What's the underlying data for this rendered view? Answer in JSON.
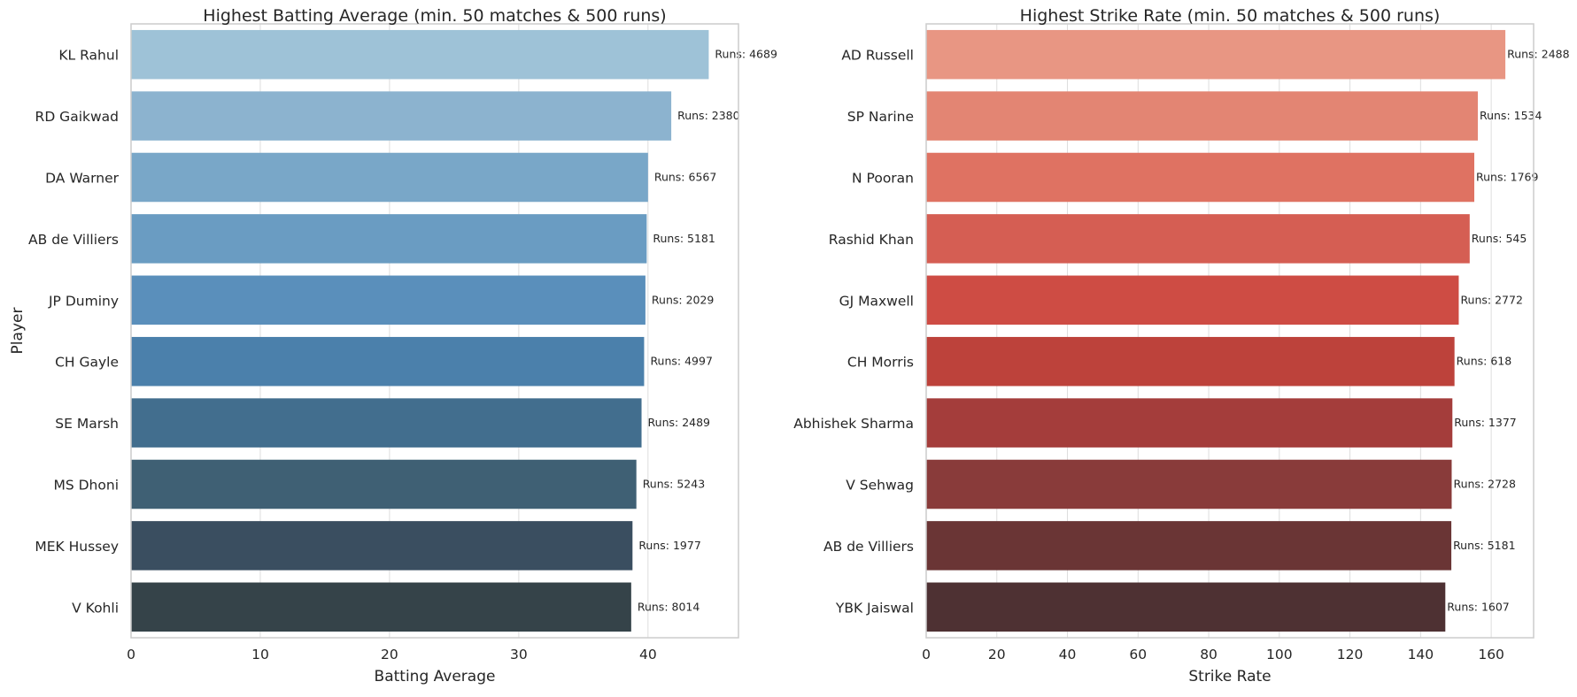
{
  "chart_data": [
    {
      "type": "bar",
      "orientation": "horizontal",
      "title": "Highest Batting Average (min. 50 matches & 500 runs)",
      "xlabel": "Batting Average",
      "ylabel": "Player",
      "xlim": [
        0,
        47
      ],
      "xticks": [
        0,
        10,
        20,
        30,
        40
      ],
      "grid": "vertical",
      "categories": [
        "KL Rahul",
        "RD Gaikwad",
        "DA Warner",
        "AB de Villiers",
        "JP Duminy",
        "CH Gayle",
        "SE Marsh",
        "MS Dhoni",
        "MEK Hussey",
        "V Kohli"
      ],
      "values": [
        44.7,
        41.8,
        40.0,
        39.9,
        39.8,
        39.7,
        39.5,
        39.1,
        38.8,
        38.7
      ],
      "annotations": [
        "Runs: 4689",
        "Runs: 2380",
        "Runs: 6567",
        "Runs: 5181",
        "Runs: 2029",
        "Runs: 4997",
        "Runs: 2489",
        "Runs: 5243",
        "Runs: 1977",
        "Runs: 8014"
      ],
      "colors": [
        "#9ec2d7",
        "#8cb3cf",
        "#79a7c8",
        "#6a9cc2",
        "#5a8fbb",
        "#4b80ab",
        "#426e8e",
        "#3f6074",
        "#3a4e60",
        "#354349"
      ]
    },
    {
      "type": "bar",
      "orientation": "horizontal",
      "title": "Highest Strike Rate (min. 50 matches & 500 runs)",
      "xlabel": "Strike Rate",
      "ylabel": "",
      "xlim": [
        0,
        172
      ],
      "xticks": [
        0,
        20,
        40,
        60,
        80,
        100,
        120,
        140,
        160
      ],
      "grid": "vertical",
      "categories": [
        "AD Russell",
        "SP Narine",
        "N Pooran",
        "Rashid Khan",
        "GJ Maxwell",
        "CH Morris",
        "Abhishek Sharma",
        "V Sehwag",
        "AB de Villiers",
        "YBK Jaiswal"
      ],
      "values": [
        164.0,
        156.2,
        155.2,
        153.9,
        150.8,
        149.6,
        149.0,
        148.8,
        148.7,
        147.0
      ],
      "annotations": [
        "Runs: 2488",
        "Runs: 1534",
        "Runs: 1769",
        "Runs: 545",
        "Runs: 2772",
        "Runs: 618",
        "Runs: 1377",
        "Runs: 2728",
        "Runs: 5181",
        "Runs: 1607"
      ],
      "colors": [
        "#e89683",
        "#e38573",
        "#df7262",
        "#d55e53",
        "#ce4c44",
        "#bd423b",
        "#a43d3b",
        "#893b3a",
        "#6a3535",
        "#4e3133"
      ]
    }
  ]
}
